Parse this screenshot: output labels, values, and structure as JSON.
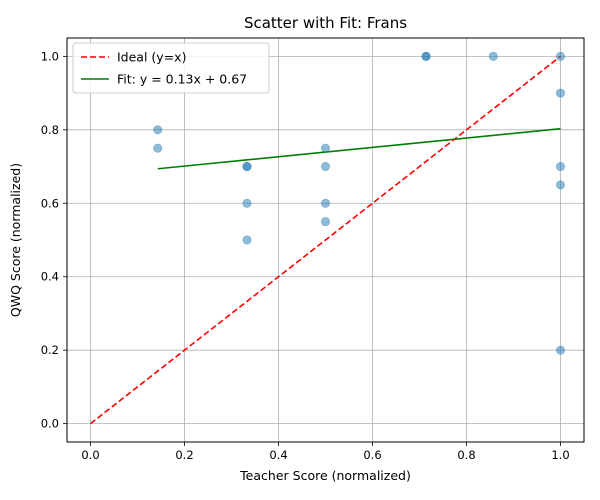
{
  "chart_data": {
    "type": "scatter",
    "title": "Scatter with Fit: Frans",
    "xlabel": "Teacher Score (normalized)",
    "ylabel": "QWQ Score (normalized)",
    "xlim": [
      -0.05,
      1.05
    ],
    "ylim": [
      -0.05,
      1.05
    ],
    "xticks": [
      "0.0",
      "0.2",
      "0.4",
      "0.6",
      "0.8",
      "1.0"
    ],
    "yticks": [
      "0.0",
      "0.2",
      "0.4",
      "0.6",
      "0.8",
      "1.0"
    ],
    "grid": true,
    "legend_position": "top-left",
    "points": {
      "color": "#1f77b4",
      "x": [
        0.143,
        0.143,
        0.333,
        0.333,
        0.333,
        0.333,
        0.5,
        0.5,
        0.5,
        0.5,
        0.714,
        0.714,
        0.857,
        1.0,
        1.0,
        1.0,
        1.0,
        1.0
      ],
      "y": [
        0.8,
        0.75,
        0.7,
        0.7,
        0.6,
        0.5,
        0.75,
        0.7,
        0.6,
        0.55,
        1.0,
        1.0,
        1.0,
        1.0,
        0.9,
        0.7,
        0.65,
        0.2
      ]
    },
    "series": [
      {
        "name": "Ideal (y=x)",
        "style": "dashed",
        "color": "#ff0000",
        "x": [
          0.0,
          1.0
        ],
        "y": [
          0.0,
          1.0
        ]
      },
      {
        "name": "Fit: y = 0.13x + 0.67",
        "style": "solid",
        "color": "#008000",
        "x": [
          0.143,
          1.0
        ],
        "y": [
          0.694,
          0.803
        ]
      }
    ]
  }
}
